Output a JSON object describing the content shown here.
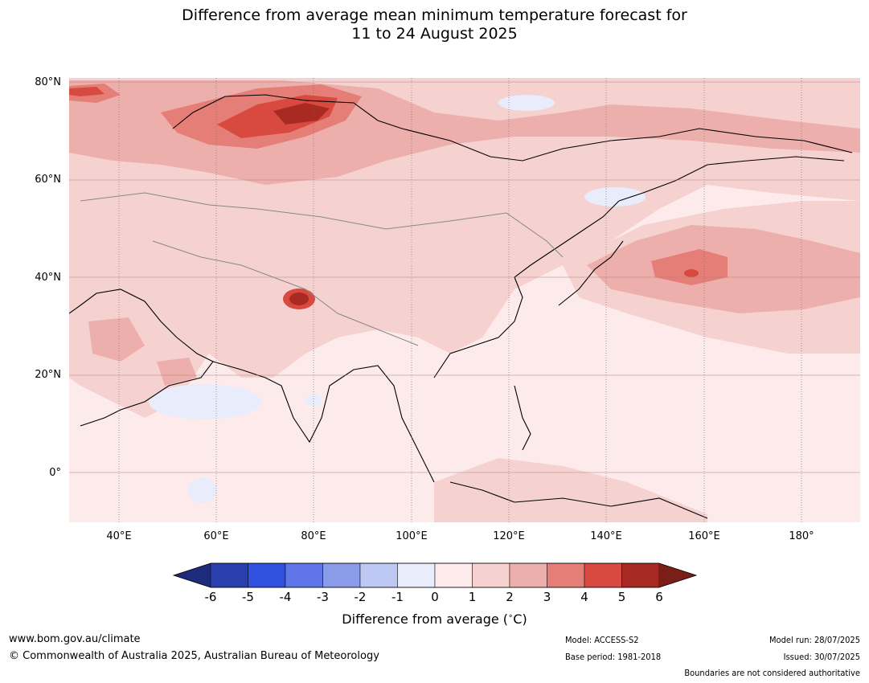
{
  "title_line1": "Difference from average mean minimum temperature forecast for",
  "title_line2": "11 to 24 August 2025",
  "lat_labels": [
    "80°N",
    "60°N",
    "40°N",
    "20°N",
    "0°"
  ],
  "lon_labels": [
    "40°E",
    "60°E",
    "80°E",
    "100°E",
    "120°E",
    "140°E",
    "160°E",
    "180°"
  ],
  "colorbar": {
    "ticks": [
      "-6",
      "-5",
      "-4",
      "-3",
      "-2",
      "-1",
      "0",
      "1",
      "2",
      "3",
      "4",
      "5",
      "6"
    ],
    "colors": [
      "#1e2a7a",
      "#2a3fae",
      "#3050e0",
      "#6075e8",
      "#8a9be8",
      "#bec8f4",
      "#e8ecfb",
      "#fcebea",
      "#f5d2d0",
      "#edafab",
      "#e47e77",
      "#d84a3f",
      "#a82a22",
      "#7a1e18"
    ],
    "label": "Difference from average ($^\\circ$C)",
    "label_text": "Difference from average (",
    "label_unit": "C)"
  },
  "footer": {
    "url": "www.bom.gov.au/climate",
    "copyright": "© Commonwealth of Australia 2025, Australian Bureau of Meteorology",
    "model": "Model: ACCESS-S2",
    "base_period": "Base period: 1981-2018",
    "model_run": "Model run: 28/07/2025",
    "issued": "Issued: 30/07/2025",
    "disclaimer": "Boundaries are not considered authoritative"
  }
}
